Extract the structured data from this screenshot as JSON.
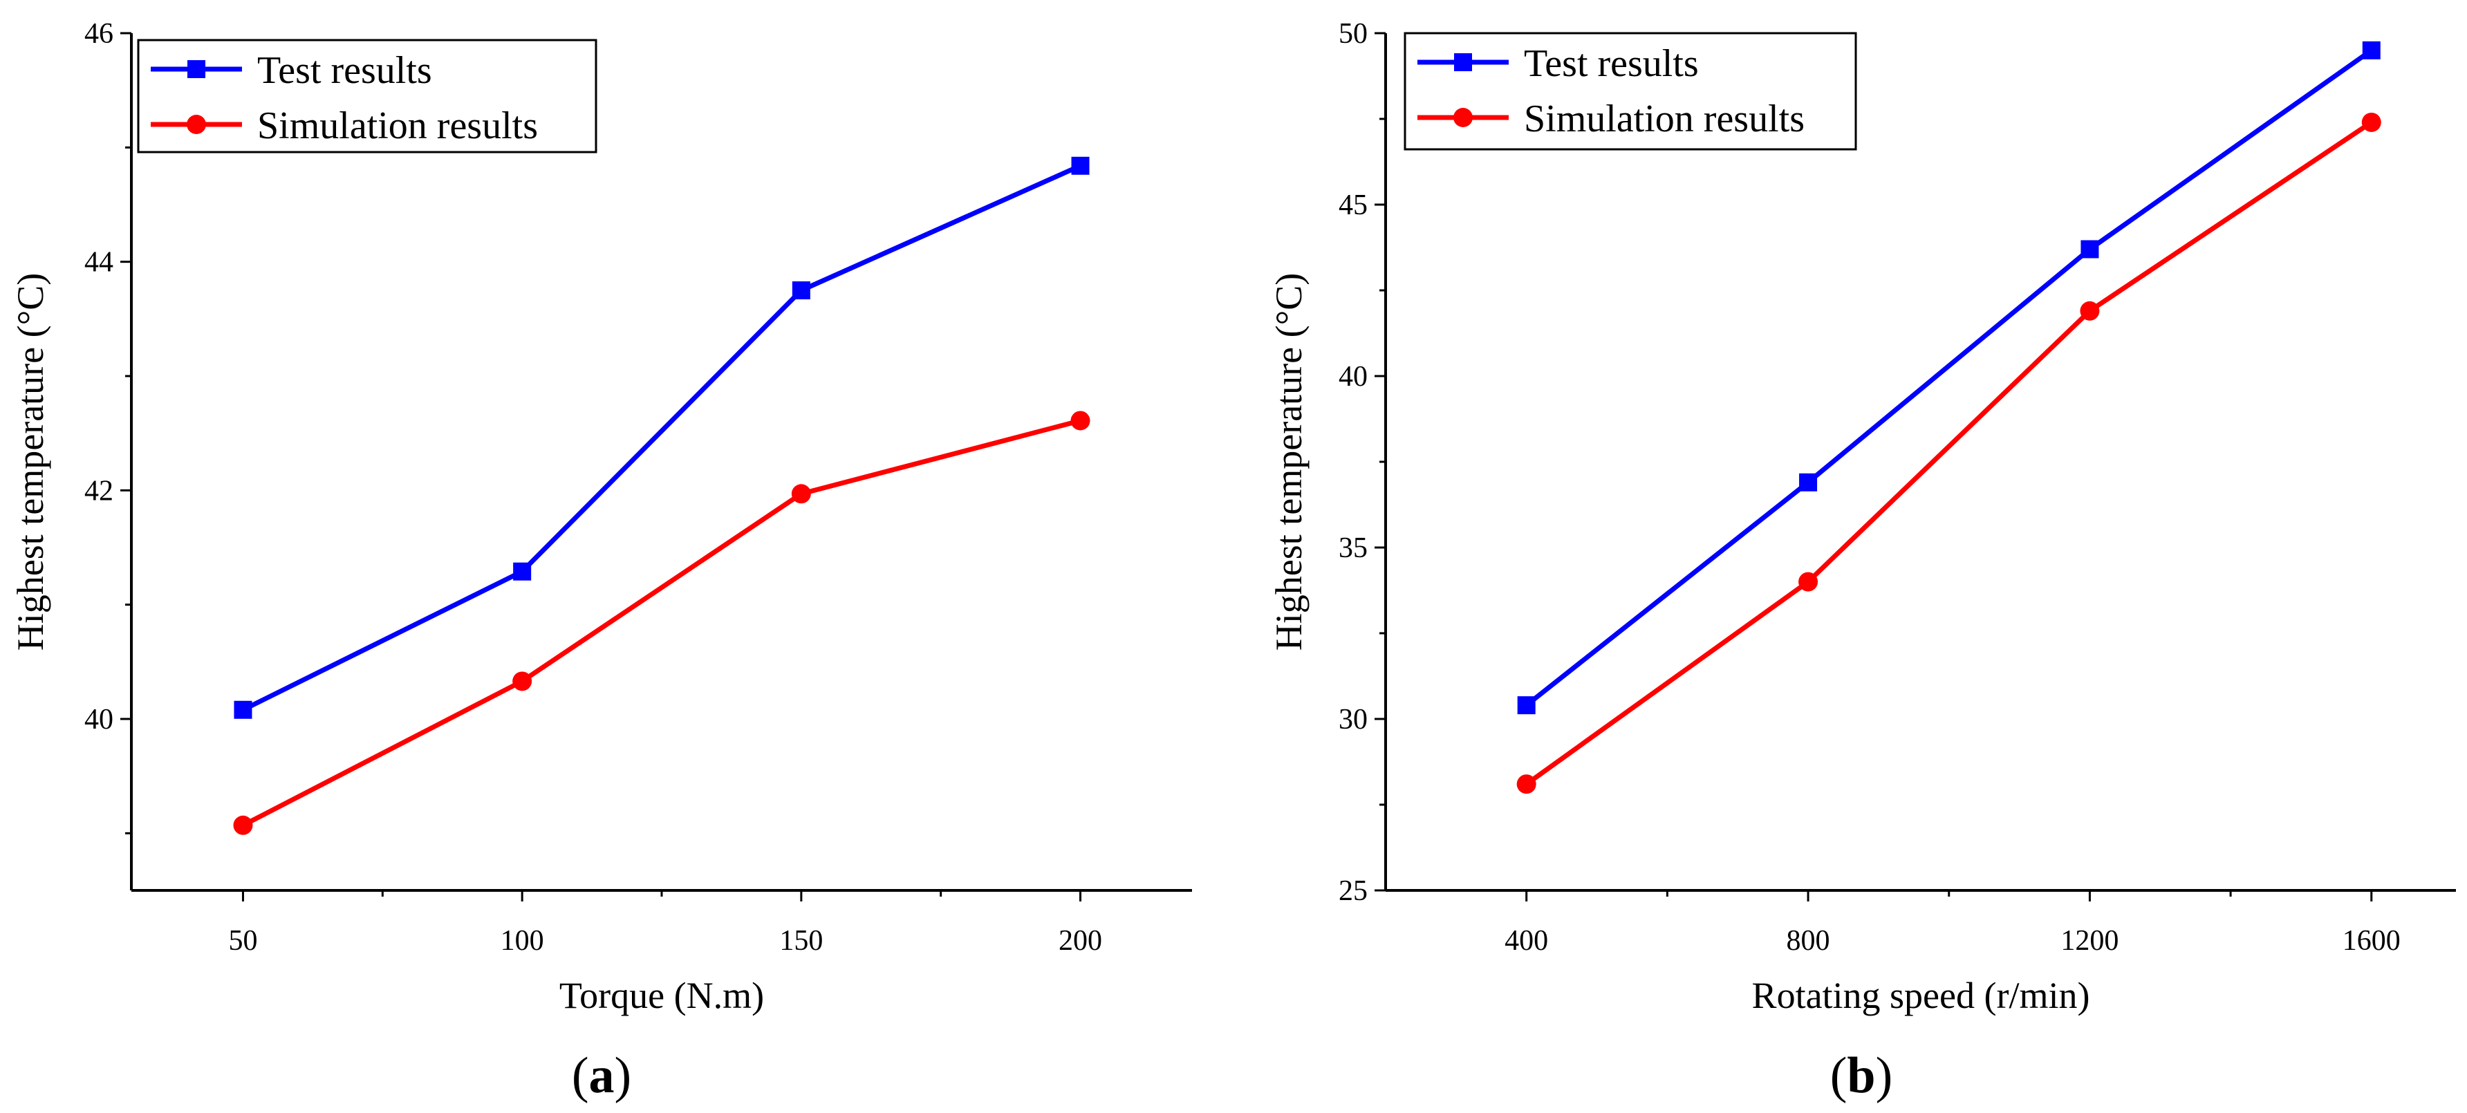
{
  "colors": {
    "test": "#0000ff",
    "simulation": "#ff0000",
    "axis": "#000000"
  },
  "chart_data": [
    {
      "type": "line",
      "panel": "a",
      "panel_label": "a",
      "xlabel": "Torque (N.m)",
      "ylabel": "Highest temperature (°C)",
      "x": [
        50,
        100,
        150,
        200
      ],
      "xlim": [
        30,
        220
      ],
      "ylim": [
        38.5,
        46
      ],
      "xticks": [
        50,
        100,
        150,
        200
      ],
      "xminor": [
        75,
        125,
        175
      ],
      "yticks": [
        40,
        42,
        44,
        46
      ],
      "yminor": [
        39,
        41,
        43,
        45
      ],
      "legend": "top-left",
      "series": [
        {
          "name": "Test results",
          "color": "#0000ff",
          "marker": "square",
          "values": [
            40.08,
            41.29,
            43.75,
            44.84
          ]
        },
        {
          "name": "Simulation results",
          "color": "#ff0000",
          "marker": "circle",
          "values": [
            39.07,
            40.33,
            41.97,
            42.61
          ]
        }
      ]
    },
    {
      "type": "line",
      "panel": "b",
      "panel_label": "b",
      "xlabel": "Rotating speed (r/min)",
      "ylabel": "Highest temperature (°C)",
      "x": [
        400,
        800,
        1200,
        1600
      ],
      "xlim": [
        200,
        1720
      ],
      "ylim": [
        25,
        50
      ],
      "xticks": [
        400,
        800,
        1200,
        1600
      ],
      "xminor": [
        600,
        1000,
        1400
      ],
      "yticks": [
        25,
        30,
        35,
        40,
        45,
        50
      ],
      "yminor": [
        27.5,
        32.5,
        37.5,
        42.5,
        47.5
      ],
      "legend": "top-left",
      "series": [
        {
          "name": "Test results",
          "color": "#0000ff",
          "marker": "square",
          "values": [
            30.4,
            36.9,
            43.7,
            49.5
          ]
        },
        {
          "name": "Simulation results",
          "color": "#ff0000",
          "marker": "circle",
          "values": [
            28.1,
            34.0,
            41.9,
            47.4
          ]
        }
      ]
    }
  ]
}
